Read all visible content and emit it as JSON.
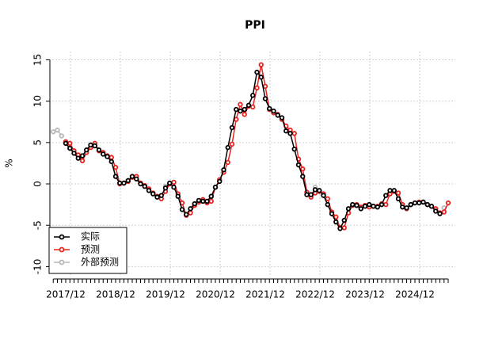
{
  "chart_data": {
    "type": "line",
    "title": "PPI",
    "y_label": "%",
    "categories": [
      null,
      null,
      null,
      "2017/12",
      null,
      null,
      null,
      null,
      null,
      null,
      null,
      null,
      null,
      null,
      null,
      "2018/12",
      null,
      null,
      null,
      null,
      null,
      null,
      null,
      null,
      null,
      null,
      null,
      "2019/12",
      null,
      null,
      null,
      null,
      null,
      null,
      null,
      null,
      null,
      null,
      null,
      "2020/12",
      null,
      null,
      null,
      null,
      null,
      null,
      null,
      null,
      null,
      null,
      null,
      "2021/12",
      null,
      null,
      null,
      null,
      null,
      null,
      null,
      null,
      null,
      null,
      null,
      "2022/12",
      null,
      null,
      null,
      null,
      null,
      null,
      null,
      null,
      null,
      null,
      null,
      "2023/12",
      null,
      null,
      null,
      null,
      null,
      null,
      null,
      null,
      null,
      null,
      null,
      "2024/12",
      null,
      null,
      null,
      null,
      null,
      null,
      null,
      null
    ],
    "series": [
      {
        "name": "实际",
        "color": "#000000",
        "values": [
          null,
          null,
          null,
          4.9,
          4.3,
          3.7,
          3.1,
          3.4,
          4.1,
          4.7,
          4.6,
          4.1,
          3.6,
          3.3,
          2.7,
          0.9,
          0.1,
          0.1,
          0.4,
          0.9,
          0.6,
          0.0,
          -0.3,
          -0.8,
          -1.2,
          -1.6,
          -1.4,
          -0.5,
          0.1,
          -0.4,
          -1.5,
          -3.1,
          -3.7,
          -3.0,
          -2.4,
          -2.0,
          -2.1,
          -2.1,
          -1.5,
          -0.4,
          0.3,
          1.7,
          4.4,
          6.8,
          9.0,
          8.8,
          9.0,
          9.5,
          10.7,
          13.5,
          12.9,
          10.3,
          9.1,
          8.8,
          8.3,
          8.0,
          6.4,
          6.1,
          4.2,
          2.3,
          0.9,
          -1.3,
          -1.3,
          -0.7,
          -0.8,
          -1.4,
          -2.5,
          -3.6,
          -4.6,
          -5.4,
          -4.4,
          -3.0,
          -2.5,
          -2.6,
          -3.0,
          -2.7,
          -2.5,
          -2.7,
          -2.8,
          -2.5,
          -1.4,
          -0.8,
          -0.8,
          -1.8,
          -2.8,
          -2.9,
          -2.5,
          -2.3,
          -2.3,
          -2.2,
          -2.5,
          -2.7,
          -3.3,
          -3.6,
          null,
          null
        ]
      },
      {
        "name": "预测",
        "color": "#e8231f",
        "values": [
          null,
          null,
          null,
          5.1,
          4.9,
          4.0,
          3.5,
          2.8,
          3.8,
          4.4,
          4.9,
          4.0,
          3.8,
          3.4,
          3.2,
          2.0,
          0.0,
          0.1,
          0.3,
          0.8,
          0.9,
          0.1,
          -0.2,
          -0.6,
          -1.1,
          -1.5,
          -1.8,
          -0.9,
          0.0,
          0.2,
          -1.2,
          -2.3,
          -3.8,
          -3.5,
          -2.6,
          -2.2,
          -1.9,
          -2.3,
          -2.1,
          -0.4,
          0.5,
          1.4,
          2.6,
          4.8,
          7.8,
          9.6,
          8.4,
          9.4,
          9.3,
          11.6,
          14.4,
          11.8,
          9.0,
          8.6,
          8.4,
          7.8,
          7.0,
          6.5,
          6.1,
          3.0,
          1.8,
          -1.0,
          -1.6,
          -1.1,
          -0.9,
          -1.2,
          -1.8,
          -3.4,
          -4.0,
          -5.3,
          -5.3,
          -3.5,
          -2.6,
          -2.5,
          -2.8,
          -2.6,
          -2.8,
          -2.7,
          -2.7,
          -2.4,
          -2.5,
          -1.2,
          -0.9,
          -1.1,
          -2.5,
          -3.0,
          -2.5,
          -2.3,
          -2.2,
          -2.2,
          -2.5,
          -2.7,
          -3.0,
          -3.5,
          -3.4,
          -2.3
        ]
      },
      {
        "name": "外部预测",
        "color": "#b8b8b8",
        "values": [
          6.3,
          6.5,
          5.8,
          null,
          null,
          null,
          null,
          null,
          null,
          null,
          null,
          null,
          null,
          null,
          null,
          null,
          null,
          null,
          null,
          null,
          null,
          null,
          null,
          null,
          null,
          null,
          null,
          -0.3,
          null,
          null,
          null,
          null,
          null,
          null,
          null,
          null,
          null,
          null,
          -1.6,
          null,
          null,
          null,
          null,
          null,
          null,
          null,
          null,
          null,
          null,
          null,
          null,
          null,
          null,
          null,
          null,
          null,
          null,
          null,
          null,
          null,
          null,
          null,
          null,
          -0.4,
          null,
          null,
          null,
          null,
          null,
          null,
          null,
          null,
          null,
          null,
          null,
          null,
          null,
          null,
          null,
          null,
          null,
          null,
          null,
          null,
          null,
          null,
          null,
          null,
          null,
          null,
          null,
          null,
          null,
          null,
          -2.9,
          null
        ]
      }
    ],
    "ylim": [
      -11.3,
      16
    ],
    "yticks": [
      -10,
      -5,
      0,
      5,
      10,
      15
    ],
    "grid": true,
    "legend": "bottom-left"
  }
}
